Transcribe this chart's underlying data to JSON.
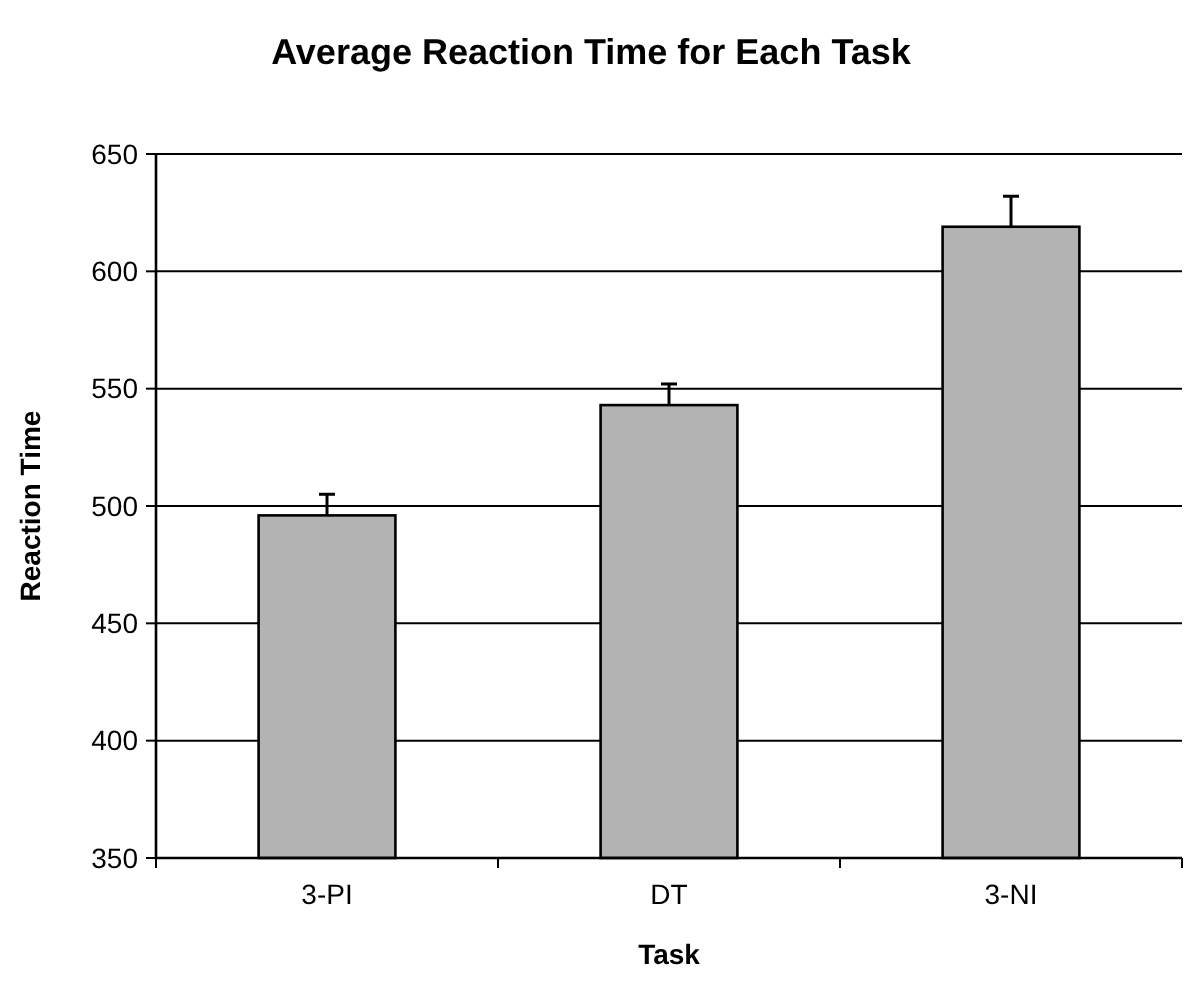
{
  "chart_data": {
    "type": "bar",
    "title": "Average Reaction Time for Each Task",
    "xlabel": "Task",
    "ylabel": "Reaction Time",
    "categories": [
      "3-PI",
      "DT",
      "3-NI"
    ],
    "values": [
      496,
      543,
      619
    ],
    "errors": [
      [
        496,
        505
      ],
      [
        543,
        552
      ],
      [
        619,
        632
      ]
    ],
    "color": "#b3b3b3",
    "ylim": [
      350,
      650
    ],
    "yticks": [
      350,
      400,
      450,
      500,
      550,
      600,
      650
    ],
    "grid": "y"
  }
}
